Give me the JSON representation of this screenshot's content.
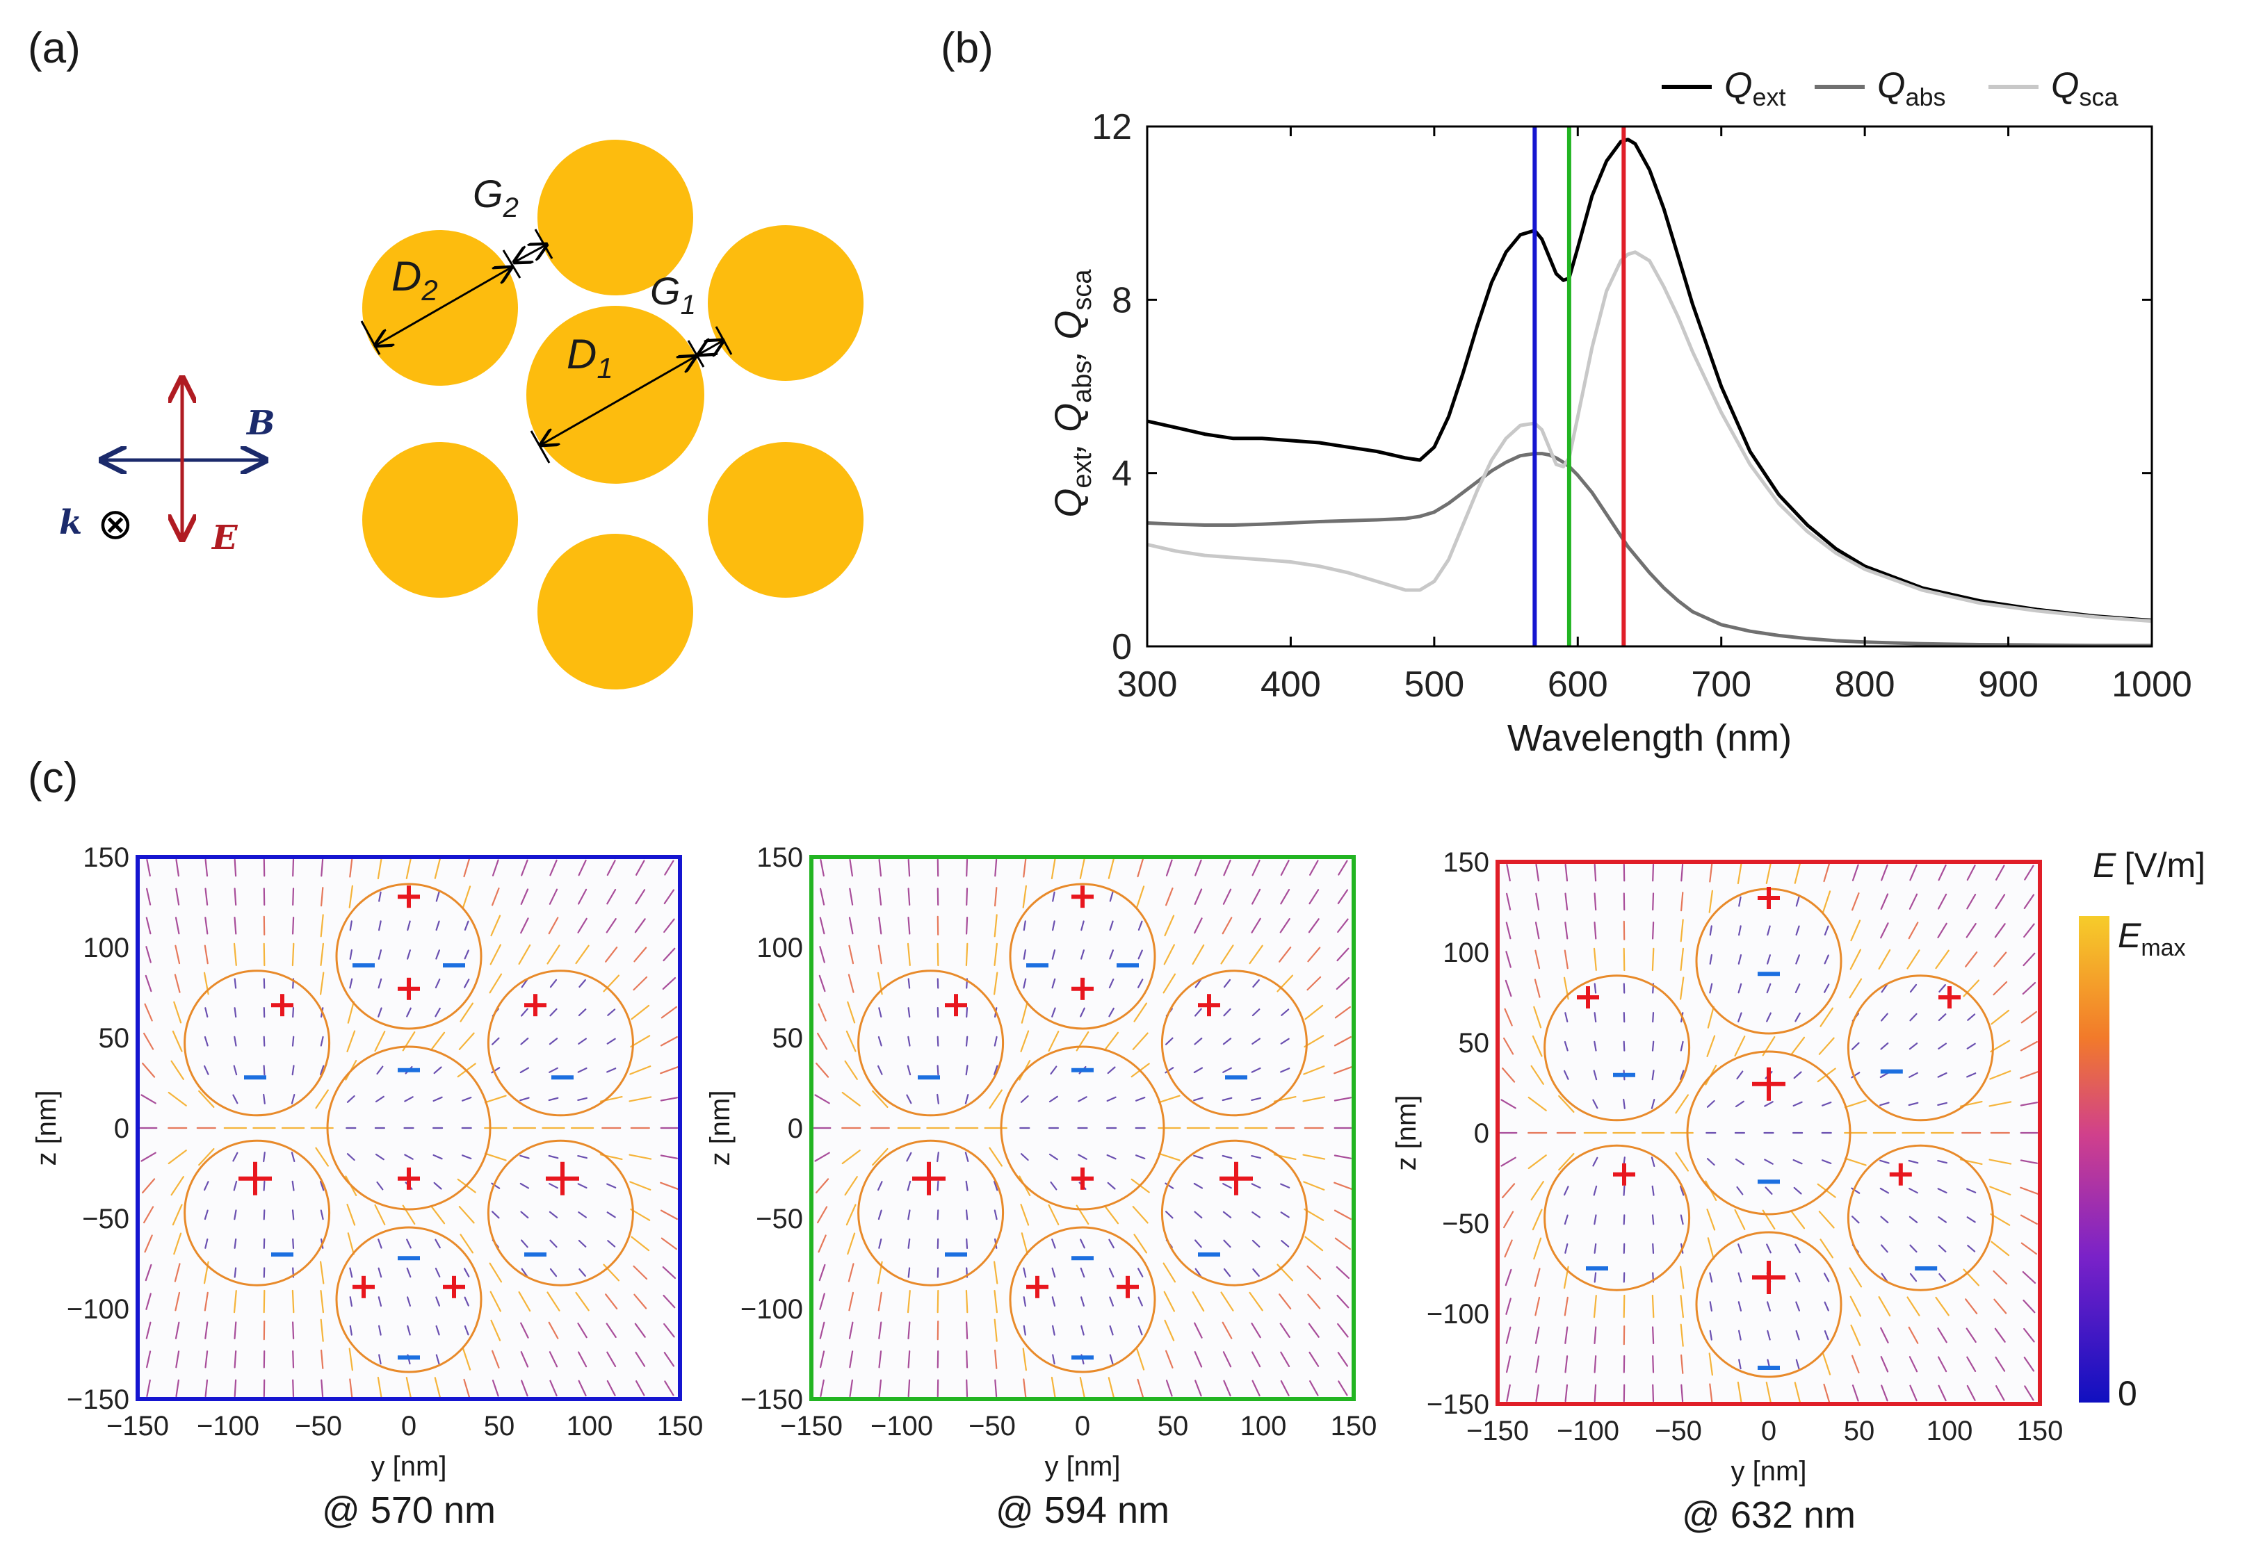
{
  "panels": {
    "a": {
      "label": "(a)",
      "D2": "D",
      "D2_sub": "2",
      "G2": "G",
      "G2_sub": "2",
      "G1": "G",
      "G1_sub": "1",
      "D1": "D",
      "D1_sub": "1",
      "B": "B",
      "k": "k",
      "E": "E",
      "k_symbol": "⊗"
    },
    "b": {
      "label": "(b)"
    },
    "c": {
      "label": "(c)",
      "xlabel": "y [nm]",
      "ylabel": "z [nm]",
      "ticks": [
        "−150",
        "−100",
        "−50",
        "0",
        "50",
        "100",
        "150"
      ],
      "captions": [
        "@ 570 nm",
        "@ 594 nm",
        "@ 632 nm"
      ],
      "colorbar": {
        "title": "E",
        "unit": "[V/m]",
        "max_main": "E",
        "max_sub": "max",
        "min": "0"
      }
    }
  },
  "colors": {
    "particle": "#FDBC0E",
    "blue": "#1515D0",
    "green": "#22B422",
    "red": "#E01E28",
    "charge_pos": "#E8161E",
    "charge_neg": "#1C6FE0"
  },
  "chart_data": [
    {
      "type": "line",
      "title": "",
      "xlabel": "Wavelength  (nm)",
      "ylabel_parts": [
        "Q",
        "ext",
        ",  Q",
        "abs",
        ",  Q",
        "sca"
      ],
      "xlim": [
        300,
        1000
      ],
      "ylim": [
        0,
        12
      ],
      "xticks": [
        300,
        400,
        500,
        600,
        700,
        800,
        900,
        1000
      ],
      "yticks": [
        0,
        4,
        8,
        12
      ],
      "legend_position": "top-right",
      "x": [
        300,
        320,
        340,
        360,
        380,
        400,
        420,
        440,
        460,
        480,
        490,
        500,
        510,
        520,
        530,
        540,
        550,
        560,
        570,
        575,
        580,
        585,
        590,
        594,
        600,
        610,
        620,
        630,
        635,
        640,
        650,
        660,
        670,
        680,
        700,
        720,
        740,
        760,
        780,
        800,
        840,
        880,
        920,
        960,
        1000
      ],
      "series": [
        {
          "name": "Q",
          "sub": "ext",
          "color": "#000000",
          "values": [
            5.2,
            5.05,
            4.9,
            4.8,
            4.8,
            4.75,
            4.7,
            4.6,
            4.5,
            4.35,
            4.3,
            4.6,
            5.3,
            6.3,
            7.4,
            8.4,
            9.1,
            9.5,
            9.6,
            9.4,
            9.0,
            8.6,
            8.45,
            8.5,
            9.2,
            10.4,
            11.2,
            11.65,
            11.7,
            11.6,
            11.0,
            10.1,
            9.0,
            7.9,
            6.0,
            4.5,
            3.5,
            2.8,
            2.25,
            1.85,
            1.35,
            1.05,
            0.85,
            0.7,
            0.6
          ]
        },
        {
          "name": "Q",
          "sub": "abs",
          "color": "#707070",
          "values": [
            2.85,
            2.82,
            2.8,
            2.8,
            2.82,
            2.85,
            2.88,
            2.9,
            2.92,
            2.95,
            3.0,
            3.1,
            3.3,
            3.55,
            3.8,
            4.05,
            4.25,
            4.4,
            4.45,
            4.45,
            4.42,
            4.35,
            4.25,
            4.15,
            3.95,
            3.55,
            3.05,
            2.55,
            2.3,
            2.1,
            1.7,
            1.35,
            1.05,
            0.8,
            0.5,
            0.35,
            0.25,
            0.18,
            0.13,
            0.1,
            0.06,
            0.04,
            0.03,
            0.02,
            0.02
          ]
        },
        {
          "name": "Q",
          "sub": "sca",
          "color": "#C8C8C8",
          "values": [
            2.35,
            2.2,
            2.1,
            2.05,
            2.0,
            1.95,
            1.85,
            1.7,
            1.5,
            1.3,
            1.3,
            1.5,
            2.0,
            2.8,
            3.6,
            4.3,
            4.8,
            5.1,
            5.15,
            5.0,
            4.6,
            4.2,
            4.15,
            4.35,
            5.3,
            6.9,
            8.2,
            8.9,
            9.05,
            9.1,
            8.9,
            8.3,
            7.6,
            6.8,
            5.4,
            4.2,
            3.3,
            2.65,
            2.15,
            1.78,
            1.3,
            1.0,
            0.82,
            0.68,
            0.58
          ]
        }
      ],
      "vlines": [
        {
          "x": 570,
          "color": "#1515D0"
        },
        {
          "x": 594,
          "color": "#22B422"
        },
        {
          "x": 632,
          "color": "#E01E28"
        }
      ]
    }
  ]
}
